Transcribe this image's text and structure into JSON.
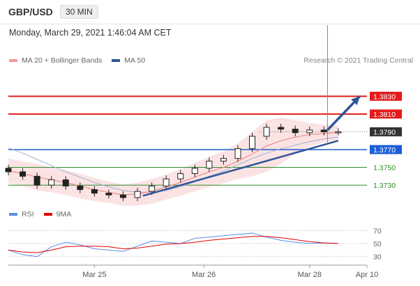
{
  "header": {
    "symbol": "GBP/USD",
    "timeframe": "30 MIN"
  },
  "datetime": "Monday, March 29, 2021 1:46:04 AM CET",
  "legend": {
    "items": [
      {
        "label": "MA 20 + Bollinger Bands",
        "color": "#f29a9a"
      },
      {
        "label": "MA 50",
        "color": "#2f5597"
      }
    ]
  },
  "copyright": "Research © 2021 Trading Central",
  "rsi_legend": {
    "items": [
      {
        "label": "RSI",
        "color": "#5b8de8"
      },
      {
        "label": "9MA",
        "color": "#e00000"
      }
    ]
  },
  "chart_data": {
    "type": "line",
    "description_type": "candlestick price chart with RSI sub-panel",
    "price_axis": {
      "ylim": [
        1.3705,
        1.386
      ],
      "levels": [
        {
          "value": 1.383,
          "label": "1.3830",
          "role": "resistance",
          "color": "#e31b1b"
        },
        {
          "value": 1.381,
          "label": "1.3810",
          "role": "resistance",
          "color": "#e31b1b"
        },
        {
          "value": 1.379,
          "label": "1.3790",
          "role": "last_price",
          "color": "#333333"
        },
        {
          "value": 1.377,
          "label": "1.3770",
          "role": "pivot",
          "color": "#1a5fd6"
        },
        {
          "value": 1.375,
          "label": "1.3750",
          "role": "support",
          "color": "#2e8b2e"
        },
        {
          "value": 1.373,
          "label": "1.3730",
          "role": "support",
          "color": "#2e8b2e"
        }
      ]
    },
    "x_axis": {
      "ticks": [
        "Mar 25",
        "Mar 26",
        "Mar 28",
        "Apr 10"
      ],
      "xlim": [
        0,
        200
      ],
      "tick_positions": [
        48,
        109,
        168,
        200
      ]
    },
    "price_series": {
      "x": [
        0,
        8,
        16,
        24,
        32,
        40,
        48,
        56,
        64,
        72,
        80,
        88,
        96,
        104,
        112,
        120,
        128,
        136,
        144,
        152,
        160,
        168,
        176,
        184
      ],
      "close": [
        1.3745,
        1.374,
        1.373,
        1.3736,
        1.3729,
        1.3725,
        1.3721,
        1.3719,
        1.3716,
        1.3723,
        1.3729,
        1.3737,
        1.3743,
        1.3749,
        1.3757,
        1.376,
        1.3771,
        1.3785,
        1.3795,
        1.3793,
        1.3789,
        1.3792,
        1.379,
        1.379
      ]
    },
    "ma20": [
      1.3746,
      1.3743,
      1.3739,
      1.3736,
      1.3733,
      1.3729,
      1.3725,
      1.3722,
      1.3719,
      1.372,
      1.3723,
      1.3728,
      1.3733,
      1.3739,
      1.3745,
      1.375,
      1.3757,
      1.3765,
      1.3774,
      1.378,
      1.3784,
      1.3787,
      1.3788,
      1.3789
    ],
    "bb_upper": [
      1.376,
      1.3757,
      1.3754,
      1.375,
      1.3747,
      1.3743,
      1.3738,
      1.3734,
      1.3731,
      1.3733,
      1.3737,
      1.3742,
      1.3748,
      1.3755,
      1.3762,
      1.3768,
      1.3777,
      1.379,
      1.3803,
      1.3806,
      1.3803,
      1.38,
      1.3798,
      1.3797
    ],
    "bb_lower": [
      1.3732,
      1.3729,
      1.3724,
      1.3722,
      1.3719,
      1.3715,
      1.3712,
      1.371,
      1.3707,
      1.3707,
      1.3709,
      1.3714,
      1.3718,
      1.3723,
      1.3728,
      1.3732,
      1.3737,
      1.374,
      1.3745,
      1.3754,
      1.3765,
      1.3774,
      1.3778,
      1.3781
    ],
    "ma50": [
      1.3772,
      1.3766,
      1.3759,
      1.3752,
      1.3745,
      1.3739,
      1.3733,
      1.3728,
      1.3724,
      1.3722,
      1.3722,
      1.3724,
      1.3728,
      1.3734,
      1.374,
      1.3746,
      1.3753,
      1.376,
      1.3766,
      1.3771,
      1.3775,
      1.3779,
      1.3782,
      1.3784
    ],
    "spike": {
      "x": 178,
      "high": 1.391,
      "low": 1.3778
    },
    "trendline": {
      "from": {
        "x": 75,
        "y": 1.3718
      },
      "to": {
        "x": 184,
        "y": 1.378
      }
    },
    "forecast_arrow": {
      "from": {
        "x": 178,
        "y": 1.3792
      },
      "to": {
        "x": 196,
        "y": 1.383
      }
    },
    "rsi": {
      "ylim": [
        20,
        80
      ],
      "levels": [
        {
          "value": 70,
          "label": "70"
        },
        {
          "value": 50,
          "label": "50"
        },
        {
          "value": 30,
          "label": "30"
        }
      ],
      "x": [
        0,
        8,
        16,
        24,
        32,
        40,
        48,
        56,
        64,
        72,
        80,
        88,
        96,
        104,
        112,
        120,
        128,
        136,
        144,
        152,
        160,
        168,
        176,
        184
      ],
      "rsi": [
        40,
        33,
        30,
        45,
        52,
        48,
        42,
        40,
        38,
        46,
        54,
        52,
        50,
        58,
        60,
        62,
        64,
        66,
        60,
        55,
        52,
        50,
        51,
        50
      ],
      "ma9": [
        40,
        37,
        36,
        40,
        45,
        46,
        46,
        45,
        42,
        43,
        46,
        49,
        50,
        52,
        55,
        57,
        59,
        61,
        61,
        59,
        56,
        53,
        51,
        50
      ]
    }
  }
}
